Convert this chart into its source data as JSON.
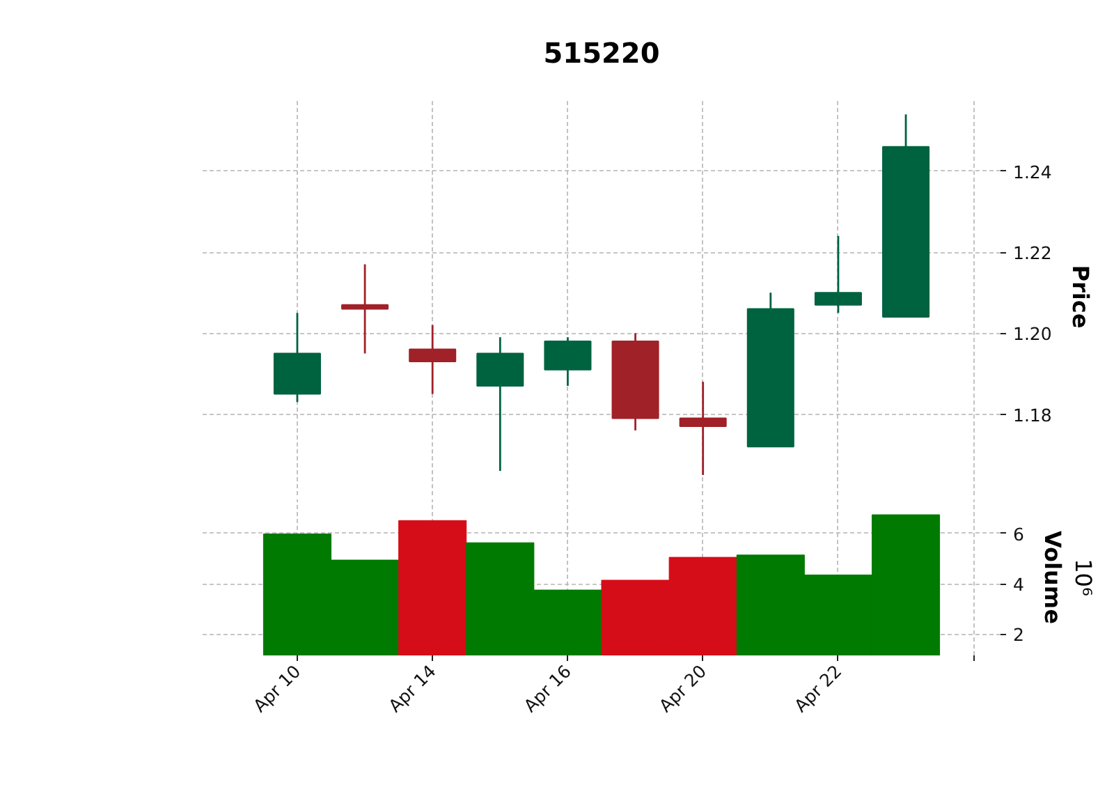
{
  "chart_data": [
    {
      "type": "candlestick",
      "title": "515220",
      "ylabel": "Price",
      "categories": [
        null,
        null,
        null,
        null,
        null,
        null,
        null,
        null,
        null,
        null
      ],
      "ohlc": [
        [
          1.185,
          1.205,
          1.183,
          1.195
        ],
        [
          1.207,
          1.217,
          1.195,
          1.206
        ],
        [
          1.196,
          1.202,
          1.185,
          1.193
        ],
        [
          1.187,
          1.199,
          1.166,
          1.195
        ],
        [
          1.191,
          1.199,
          1.187,
          1.198
        ],
        [
          1.198,
          1.2,
          1.176,
          1.179
        ],
        [
          1.179,
          1.188,
          1.165,
          1.177
        ],
        [
          1.172,
          1.21,
          1.172,
          1.206
        ],
        [
          1.207,
          1.224,
          1.205,
          1.21
        ],
        [
          1.204,
          1.254,
          1.204,
          1.246
        ]
      ],
      "colors": [
        "#006340",
        "#a02128",
        "#a02128",
        "#006340",
        "#006340",
        "#a02128",
        "#a02128",
        "#006340",
        "#006340",
        "#006340"
      ],
      "ylim": [
        1.16,
        1.258
      ],
      "yticks": [
        1.18,
        {
          "value": 1.2,
          "label": "1.20"
        },
        1.22,
        1.24
      ],
      "grid": true,
      "tick_labels": "y"
    },
    {
      "type": "bar",
      "ylabel": "Volume",
      "annotations": [
        "10⁶"
      ],
      "categories": [
        "Apr 10",
        null,
        "Apr 14",
        null,
        "Apr 16",
        null,
        "Apr 20",
        null,
        "Apr 22",
        null
      ],
      "values": [
        5.98,
        4.94,
        6.51,
        5.63,
        3.75,
        4.14,
        5.05,
        5.14,
        4.35,
        6.74
      ],
      "colors": [
        "#007a00",
        "#007a00",
        "#d50d18",
        "#007a00",
        "#007a00",
        "#d50d18",
        "#d50d18",
        "#007a00",
        "#007a00",
        "#007a00"
      ],
      "ylim": [
        1.15,
        7.35
      ],
      "yticks": [
        2,
        4,
        6
      ],
      "grid": true
    }
  ]
}
